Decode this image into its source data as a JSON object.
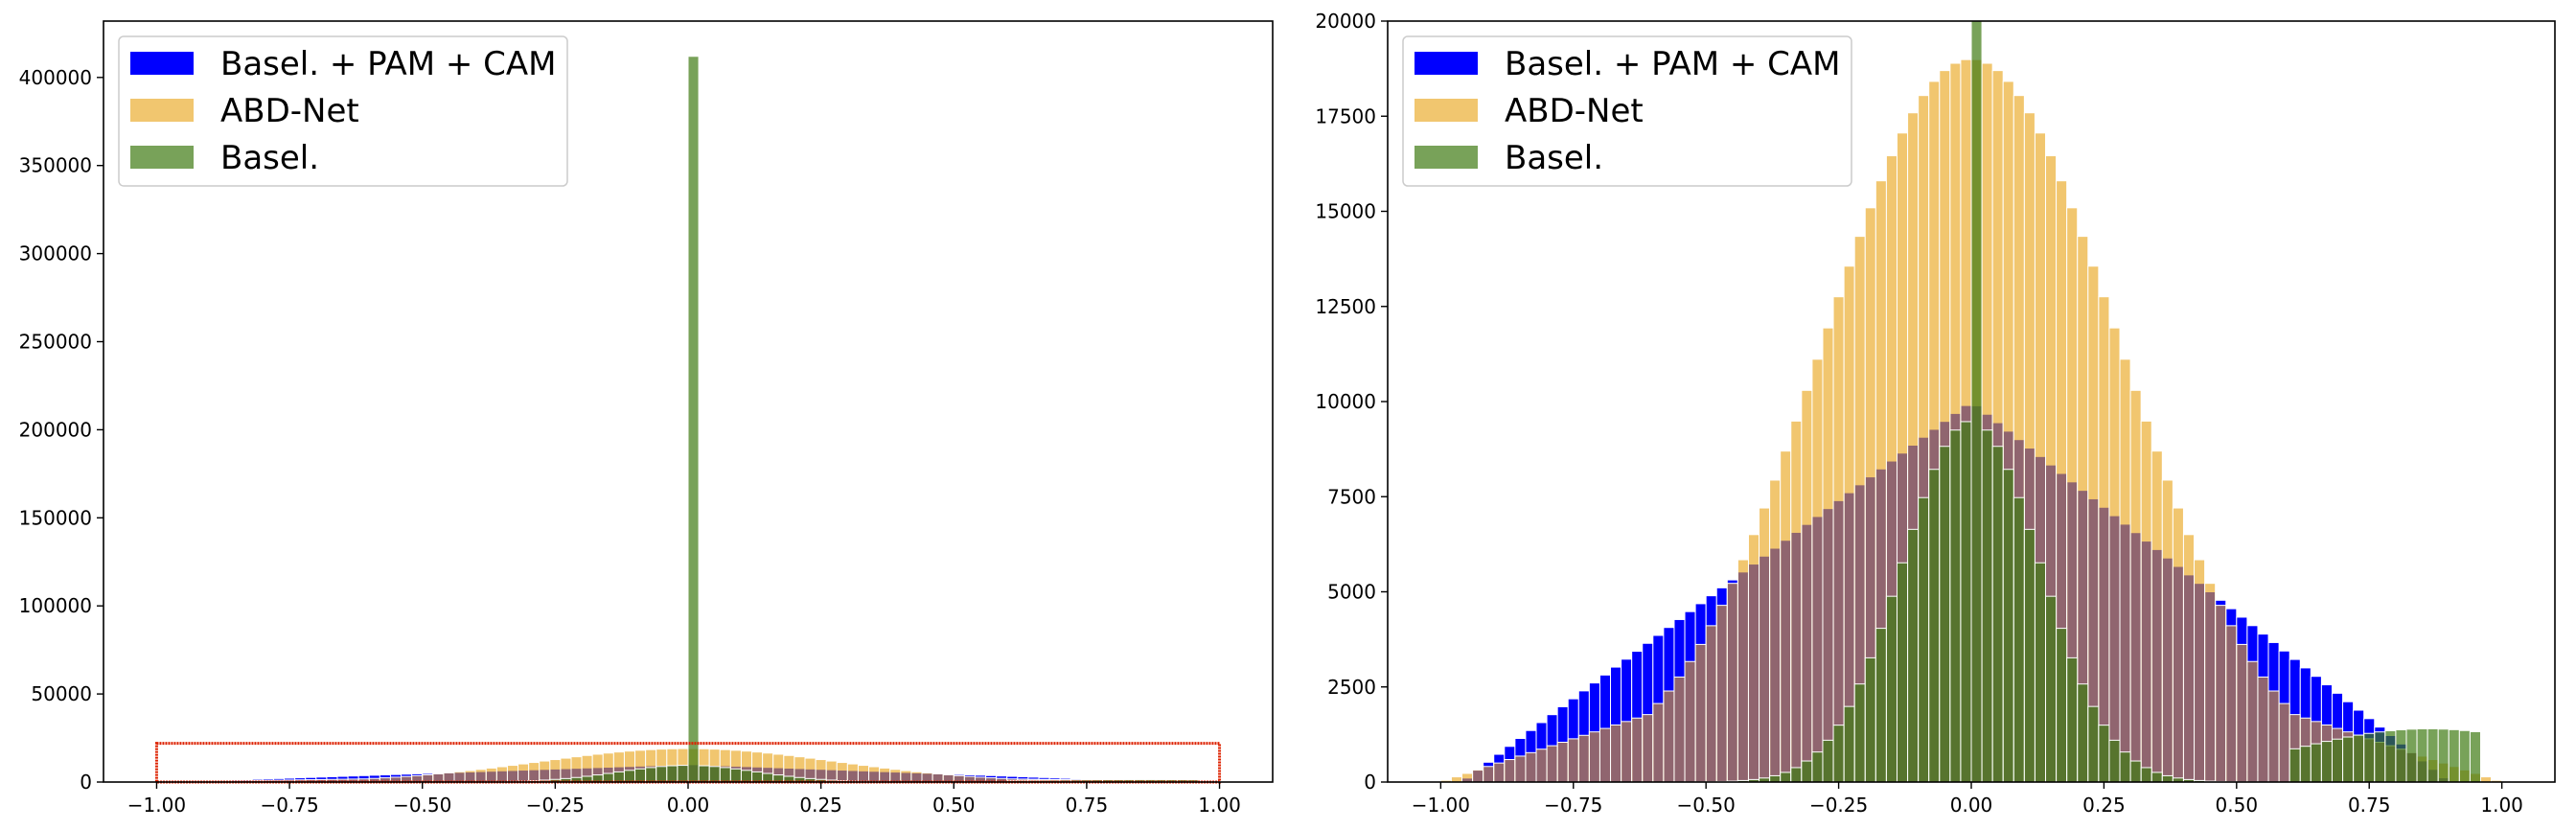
{
  "colors": {
    "pam_cam": "#0000ff",
    "abd_net": "#e8a317",
    "basel": "#3f7a13",
    "highlight_box": "#dd2200"
  },
  "chart_data": [
    {
      "type": "bar",
      "panel": "left",
      "xlim": [
        -1.1,
        1.1
      ],
      "ylim": [
        0,
        432000
      ],
      "xticks": [
        -1.0,
        -0.75,
        -0.5,
        -0.25,
        0.0,
        0.25,
        0.5,
        0.75,
        1.0
      ],
      "xtick_labels": [
        "−1.00",
        "−0.75",
        "−0.50",
        "−0.25",
        "0.00",
        "0.25",
        "0.50",
        "0.75",
        "1.00"
      ],
      "yticks": [
        0,
        50000,
        100000,
        150000,
        200000,
        250000,
        300000,
        350000,
        400000
      ],
      "ytick_labels": [
        "0",
        "50000",
        "100000",
        "150000",
        "200000",
        "250000",
        "300000",
        "350000",
        "400000"
      ],
      "legend_position": "upper left",
      "legend_entries": [
        "Basel. + PAM + CAM",
        "ABD-Net",
        "Basel."
      ],
      "annotation": "red rectangle highlighting the low-count region from x=-1.0 to x=1.0, y=0 to about 22000",
      "highlight_box": {
        "x": [
          -1.0,
          1.0
        ],
        "y": [
          0,
          22000
        ]
      },
      "series": [
        {
          "name": "Basel. + PAM + CAM",
          "distribution": "triangular",
          "x_min": -0.96,
          "x_peak": 0.0,
          "x_max": 0.9,
          "peak": 10000,
          "alpha": 1.0
        },
        {
          "name": "ABD-Net",
          "distribution": "gaussian",
          "mean": 0.0,
          "sd": 0.28,
          "peak": 19000,
          "floor_at": 0.45,
          "floor": 2500,
          "alpha": 0.62
        },
        {
          "name": "Basel.",
          "distribution": "gaussian",
          "mean": 0.0,
          "sd": 0.13,
          "peak": 9500,
          "spike_value": 412000,
          "tail_floor": 1400,
          "alpha": 0.7
        }
      ]
    },
    {
      "type": "bar",
      "panel": "right",
      "xlim": [
        -1.1,
        1.1
      ],
      "ylim": [
        0,
        20000
      ],
      "xticks": [
        -1.0,
        -0.75,
        -0.5,
        -0.25,
        0.0,
        0.25,
        0.5,
        0.75,
        1.0
      ],
      "xtick_labels": [
        "−1.00",
        "−0.75",
        "−0.50",
        "−0.25",
        "0.00",
        "0.25",
        "0.50",
        "0.75",
        "1.00"
      ],
      "yticks": [
        0,
        2500,
        5000,
        7500,
        10000,
        12500,
        15000,
        17500,
        20000
      ],
      "ytick_labels": [
        "0",
        "2500",
        "5000",
        "7500",
        "10000",
        "12500",
        "15000",
        "17500",
        "20000"
      ],
      "legend_position": "upper left",
      "legend_entries": [
        "Basel. + PAM + CAM",
        "ABD-Net",
        "Basel."
      ],
      "series": [
        {
          "name": "Basel. + PAM + CAM",
          "distribution": "triangular",
          "x_min": -0.96,
          "x_peak": 0.0,
          "x_max": 0.9,
          "peak": 10000,
          "alpha": 1.0
        },
        {
          "name": "ABD-Net",
          "distribution": "gaussian",
          "mean": 0.0,
          "sd": 0.28,
          "peak": 19000,
          "floor_at": 0.45,
          "floor": 2500,
          "alpha": 0.62
        },
        {
          "name": "Basel.",
          "distribution": "gaussian",
          "mean": 0.0,
          "sd": 0.13,
          "peak": 9500,
          "spike_value": 412000,
          "tail_floor": 1400,
          "alpha": 0.7
        }
      ]
    }
  ]
}
